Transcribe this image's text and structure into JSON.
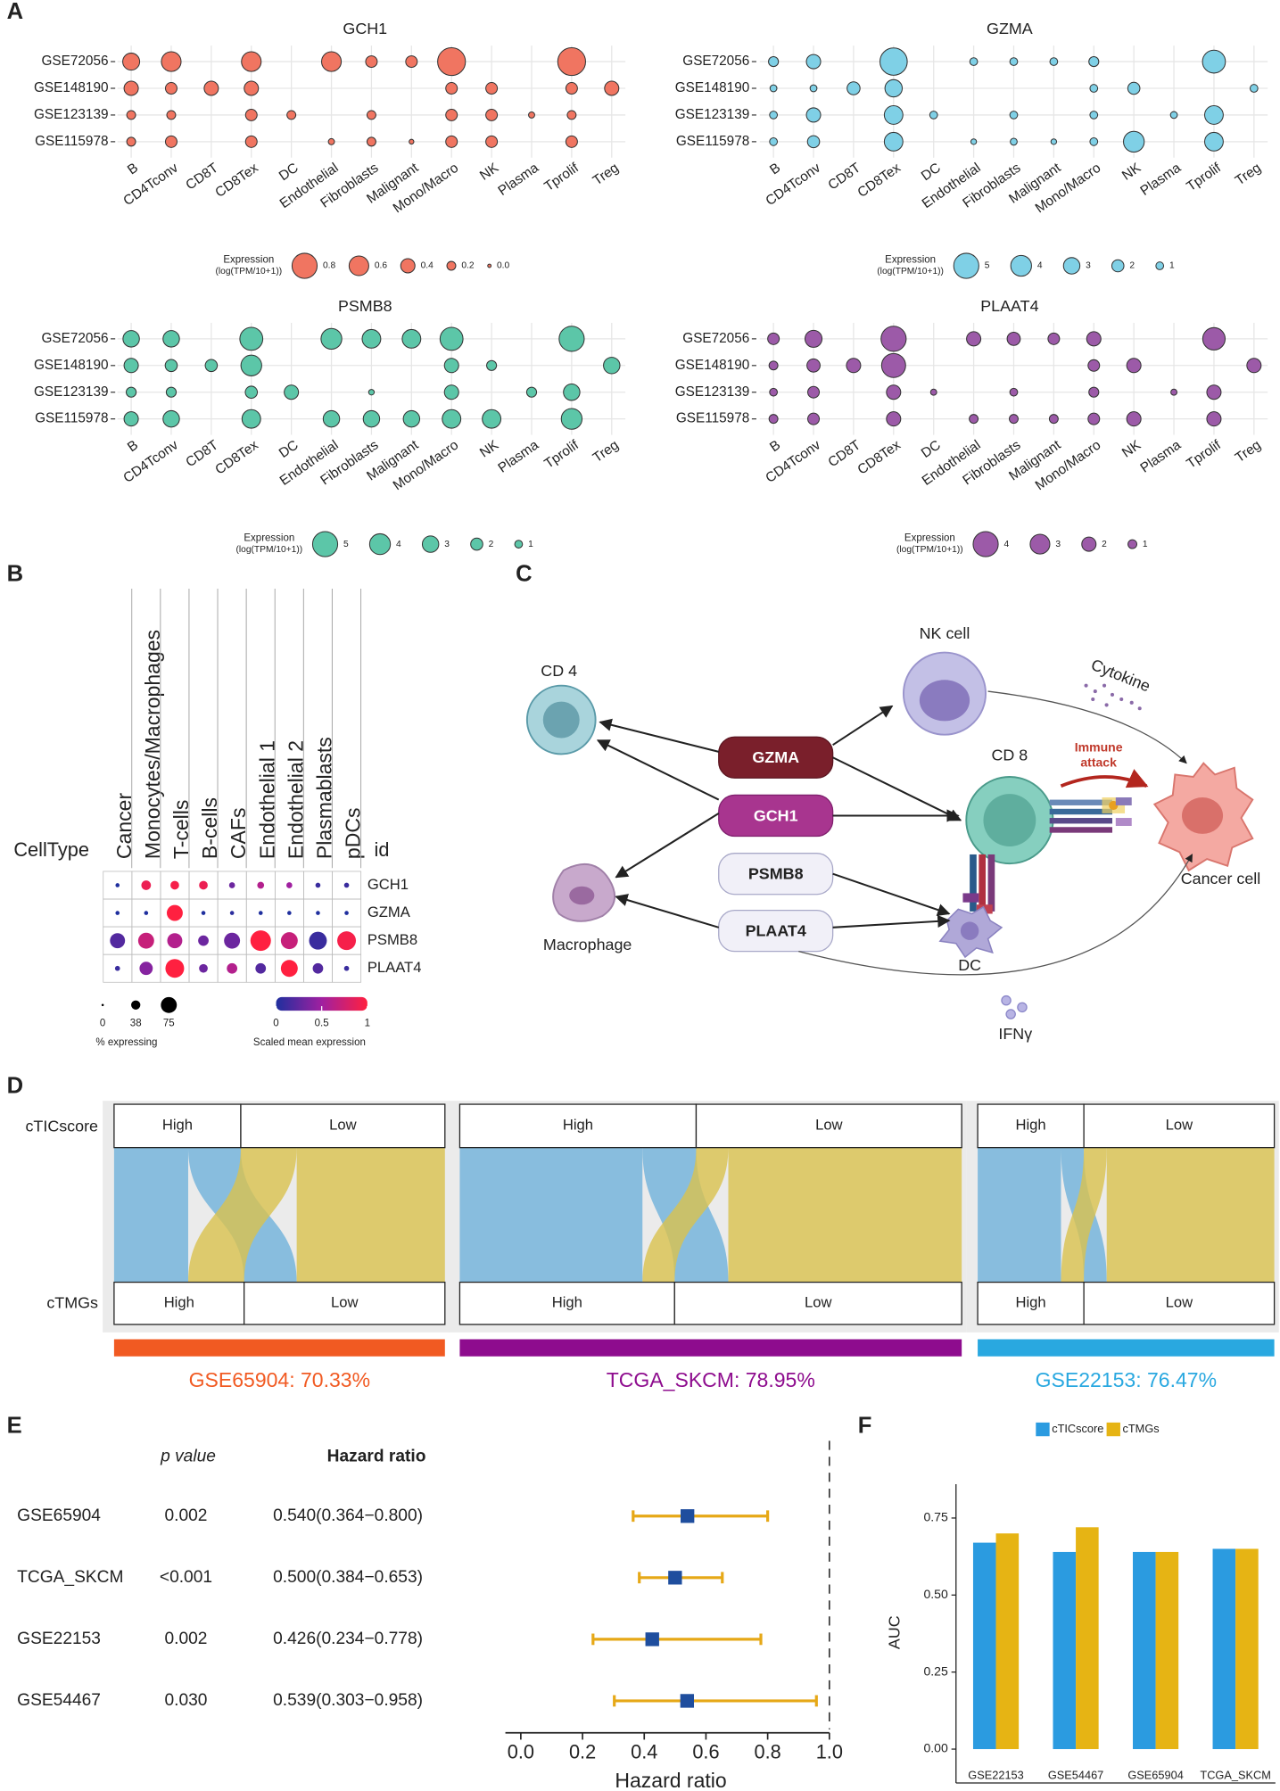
{
  "panels": {
    "A": {
      "label": "A",
      "charts": [
        {
          "type": "dotplot",
          "title": "GCH1",
          "color": "#f07561",
          "datasets": [
            "GSE72056",
            "GSE148190",
            "GSE123139",
            "GSE115978"
          ],
          "categories": [
            "B",
            "CD4Tconv",
            "CD8T",
            "CD8Tex",
            "DC",
            "Endothelial",
            "Fibroblasts",
            "Malignant",
            "Mono/Macro",
            "NK",
            "Plasma",
            "Tprolif",
            "Treg"
          ],
          "values": [
            [
              0.5,
              0.6,
              null,
              0.6,
              null,
              0.6,
              0.3,
              0.3,
              0.9,
              null,
              null,
              0.9,
              null
            ],
            [
              0.4,
              0.3,
              0.4,
              0.4,
              null,
              null,
              null,
              null,
              0.3,
              0.3,
              null,
              0.3,
              0.4
            ],
            [
              0.2,
              0.2,
              null,
              0.3,
              0.2,
              null,
              0.2,
              null,
              0.3,
              0.3,
              0.1,
              0.2,
              null
            ],
            [
              0.2,
              0.3,
              null,
              0.3,
              null,
              0.1,
              0.2,
              0.05,
              0.3,
              0.3,
              null,
              0.3,
              null
            ]
          ],
          "legend_title": "Expression",
          "legend_subtitle": "(log(TPM/10+1))",
          "legend_values": [
            0.8,
            0.6,
            0.4,
            0.2,
            {
              "value": 0,
              "label": "0.0"
            }
          ]
        },
        {
          "type": "dotplot",
          "title": "GZMA",
          "color": "#7fd0e6",
          "datasets": [
            "GSE72056",
            "GSE148190",
            "GSE123139",
            "GSE115978"
          ],
          "categories": [
            "B",
            "CD4Tconv",
            "CD8T",
            "CD8Tex",
            "DC",
            "Endothelial",
            "Fibroblasts",
            "Malignant",
            "Mono/Macro",
            "NK",
            "Plasma",
            "Tprolif",
            "Treg"
          ],
          "values": [
            [
              1.5,
              2.5,
              null,
              5.5,
              null,
              1,
              1,
              1,
              1.5,
              null,
              null,
              4.5,
              null
            ],
            [
              0.8,
              0.8,
              2.2,
              3.2,
              null,
              null,
              null,
              null,
              1,
              2,
              null,
              null,
              1
            ],
            [
              1,
              2.5,
              null,
              3.5,
              1,
              null,
              1,
              null,
              1,
              null,
              0.8,
              3.5,
              null
            ],
            [
              1,
              2,
              null,
              3.5,
              null,
              0.5,
              0.8,
              0.5,
              1,
              4,
              null,
              3.5,
              null
            ]
          ],
          "legend_title": "Expression",
          "legend_subtitle": "(log(TPM/10+1))",
          "legend_values": [
            5,
            4,
            3,
            2,
            1
          ]
        },
        {
          "type": "dotplot",
          "title": "PSMB8",
          "color": "#5cc6a8",
          "datasets": [
            "GSE72056",
            "GSE148190",
            "GSE123139",
            "GSE115978"
          ],
          "categories": [
            "B",
            "CD4Tconv",
            "CD8T",
            "CD8Tex",
            "DC",
            "Endothelial",
            "Fibroblasts",
            "Malignant",
            "Mono/Macro",
            "NK",
            "Plasma",
            "Tprolif",
            "Treg"
          ],
          "values": [
            [
              3,
              3,
              null,
              4.5,
              null,
              4,
              3.5,
              3.5,
              4.5,
              null,
              null,
              5,
              null
            ],
            [
              2.5,
              2,
              2,
              4,
              null,
              null,
              null,
              null,
              2.5,
              1.5,
              null,
              null,
              3
            ],
            [
              1.5,
              1.5,
              null,
              2,
              2.5,
              null,
              0.5,
              null,
              2.5,
              null,
              1.5,
              3,
              null
            ],
            [
              2.5,
              3,
              null,
              3.5,
              null,
              3,
              3,
              3,
              3.5,
              3.5,
              null,
              4,
              null
            ]
          ],
          "legend_title": "Expression",
          "legend_subtitle": "(log(TPM/10+1))",
          "legend_values": [
            5,
            4,
            3,
            2,
            1
          ]
        },
        {
          "type": "dotplot",
          "title": "PLAAT4",
          "color": "#9c5aa8",
          "datasets": [
            "GSE72056",
            "GSE148190",
            "GSE123139",
            "GSE115978"
          ],
          "categories": [
            "B",
            "CD4Tconv",
            "CD8T",
            "CD8Tex",
            "DC",
            "Endothelial",
            "Fibroblasts",
            "Malignant",
            "Mono/Macro",
            "NK",
            "Plasma",
            "Tprolif",
            "Treg"
          ],
          "values": [
            [
              1.5,
              2.5,
              null,
              4,
              null,
              2,
              1.8,
              1.5,
              2,
              null,
              null,
              3.5,
              null
            ],
            [
              1,
              1.8,
              2,
              3.8,
              null,
              null,
              null,
              null,
              1.5,
              2,
              null,
              null,
              2
            ],
            [
              0.8,
              1.5,
              null,
              2,
              0.5,
              null,
              0.8,
              null,
              1.2,
              null,
              0.5,
              2,
              null
            ],
            [
              1,
              1.5,
              null,
              2,
              null,
              1,
              1,
              1,
              1.5,
              2,
              null,
              2,
              null
            ]
          ],
          "legend_title": "Expression",
          "legend_subtitle": "(log(TPM/10+1))",
          "legend_values": [
            4,
            3,
            2,
            1
          ]
        }
      ]
    },
    "B": {
      "label": "B",
      "type": "dotplot",
      "celltype_label": "CellType",
      "id_label": "id",
      "columns": [
        "Cancer",
        "Monocytes/Macrophages",
        "T-cells",
        "B-cells",
        "CAFs",
        "Endothelial 1",
        "Endothelial 2",
        "Plasmablasts",
        "pDCs"
      ],
      "rows": [
        "GCH1",
        "GZMA",
        "PSMB8",
        "PLAAT4"
      ],
      "pct": [
        [
          10,
          40,
          35,
          35,
          20,
          25,
          20,
          15,
          15
        ],
        [
          10,
          10,
          75,
          10,
          10,
          10,
          10,
          10,
          10
        ],
        [
          70,
          75,
          70,
          45,
          75,
          100,
          80,
          85,
          90
        ],
        [
          15,
          60,
          90,
          35,
          45,
          45,
          80,
          45,
          15
        ]
      ],
      "scaled": [
        [
          0,
          0.9,
          0.95,
          0.9,
          0.3,
          0.6,
          0.5,
          0.1,
          0.1
        ],
        [
          0,
          0,
          1,
          0,
          0.05,
          0,
          0,
          0,
          0
        ],
        [
          0.2,
          0.7,
          0.6,
          0.3,
          0.3,
          1,
          0.7,
          0.1,
          0.95
        ],
        [
          0.1,
          0.4,
          1,
          0.3,
          0.6,
          0.2,
          1,
          0.2,
          0.1
        ]
      ],
      "size_legend_values": [
        0,
        38,
        75
      ],
      "size_legend_title": "% expressing",
      "color_legend_ticks": [
        0,
        0.5,
        1
      ],
      "color_legend_title": "Scaled mean expression",
      "colorscale": [
        "#1f2f9e",
        "#a020a0",
        "#ff2040"
      ]
    },
    "C": {
      "label": "C",
      "genes": [
        "GZMA",
        "GCH1",
        "PSMB8",
        "PLAAT4"
      ],
      "cd4": "CD 4",
      "nk": "NK cell",
      "cytokine": "Cytokine",
      "cd8": "CD 8",
      "immune_attack": [
        "Immune",
        "attack"
      ],
      "cancer": "Cancer cell",
      "macrophage": "Macrophage",
      "dc": "DC",
      "ifn": "IFNγ"
    },
    "D": {
      "label": "D",
      "type": "alluvial",
      "rows": [
        "cTICscore",
        "cTMGs"
      ],
      "levels": [
        "High",
        "Low"
      ],
      "datasets": [
        {
          "label": "GSE65904: 70.33%",
          "color": "#f15a22",
          "flows": [
            22.4,
            15.9,
            16.9,
            44.8
          ]
        },
        {
          "label": "TCGA_SKCM: 78.95%",
          "color": "#8e0c8e",
          "flows": [
            36.4,
            10.7,
            6.4,
            46.5
          ]
        },
        {
          "label": "GSE22153: 76.47%",
          "color": "#29a8e0",
          "flows": [
            28.1,
            7.7,
            7.7,
            56.5
          ]
        }
      ]
    },
    "E": {
      "label": "E",
      "type": "forest",
      "header_p": "p value",
      "header_hr": "Hazard ratio",
      "rows": [
        {
          "name": "GSE65904",
          "p": "0.002",
          "hr_label": "0.540(0.364−0.800)",
          "hr": 0.54,
          "lo": 0.364,
          "hi": 0.8
        },
        {
          "name": "TCGA_SKCM",
          "p": "<0.001",
          "hr_label": "0.500(0.384−0.653)",
          "hr": 0.5,
          "lo": 0.384,
          "hi": 0.653
        },
        {
          "name": "GSE22153",
          "p": "0.002",
          "hr_label": "0.426(0.234−0.778)",
          "hr": 0.426,
          "lo": 0.234,
          "hi": 0.778
        },
        {
          "name": "GSE54467",
          "p": "0.030",
          "hr_label": "0.539(0.303−0.958)",
          "hr": 0.539,
          "lo": 0.303,
          "hi": 0.958
        }
      ],
      "xlabel": "Hazard ratio",
      "xlim": [
        -0.05,
        1.0
      ],
      "xticks": [
        {
          "value": 0,
          "label": "0.0"
        },
        0.2,
        0.4,
        0.6,
        0.8,
        {
          "value": 1,
          "label": "1.0"
        }
      ],
      "reference": 1,
      "whisker_color": "#e6a817",
      "point_color": "#1f4e9e"
    },
    "F": {
      "label": "F",
      "type": "bar",
      "categories": [
        "GSE22153",
        "GSE54467",
        "GSE65904",
        "TCGA_SKCM"
      ],
      "series": [
        {
          "name": "cTICscore",
          "color": "#2b9be0",
          "values": [
            0.67,
            0.64,
            0.64,
            0.65
          ]
        },
        {
          "name": "cTMGs",
          "color": "#e6b414",
          "values": [
            0.7,
            0.72,
            0.64,
            0.65
          ]
        }
      ],
      "ylabel": "AUC",
      "ylim": [
        -0.11,
        0.86
      ],
      "yticks": [
        {
          "value": 0,
          "label": "0.00"
        },
        0.25,
        {
          "value": 0.5,
          "label": "0.50"
        },
        0.75
      ]
    }
  }
}
